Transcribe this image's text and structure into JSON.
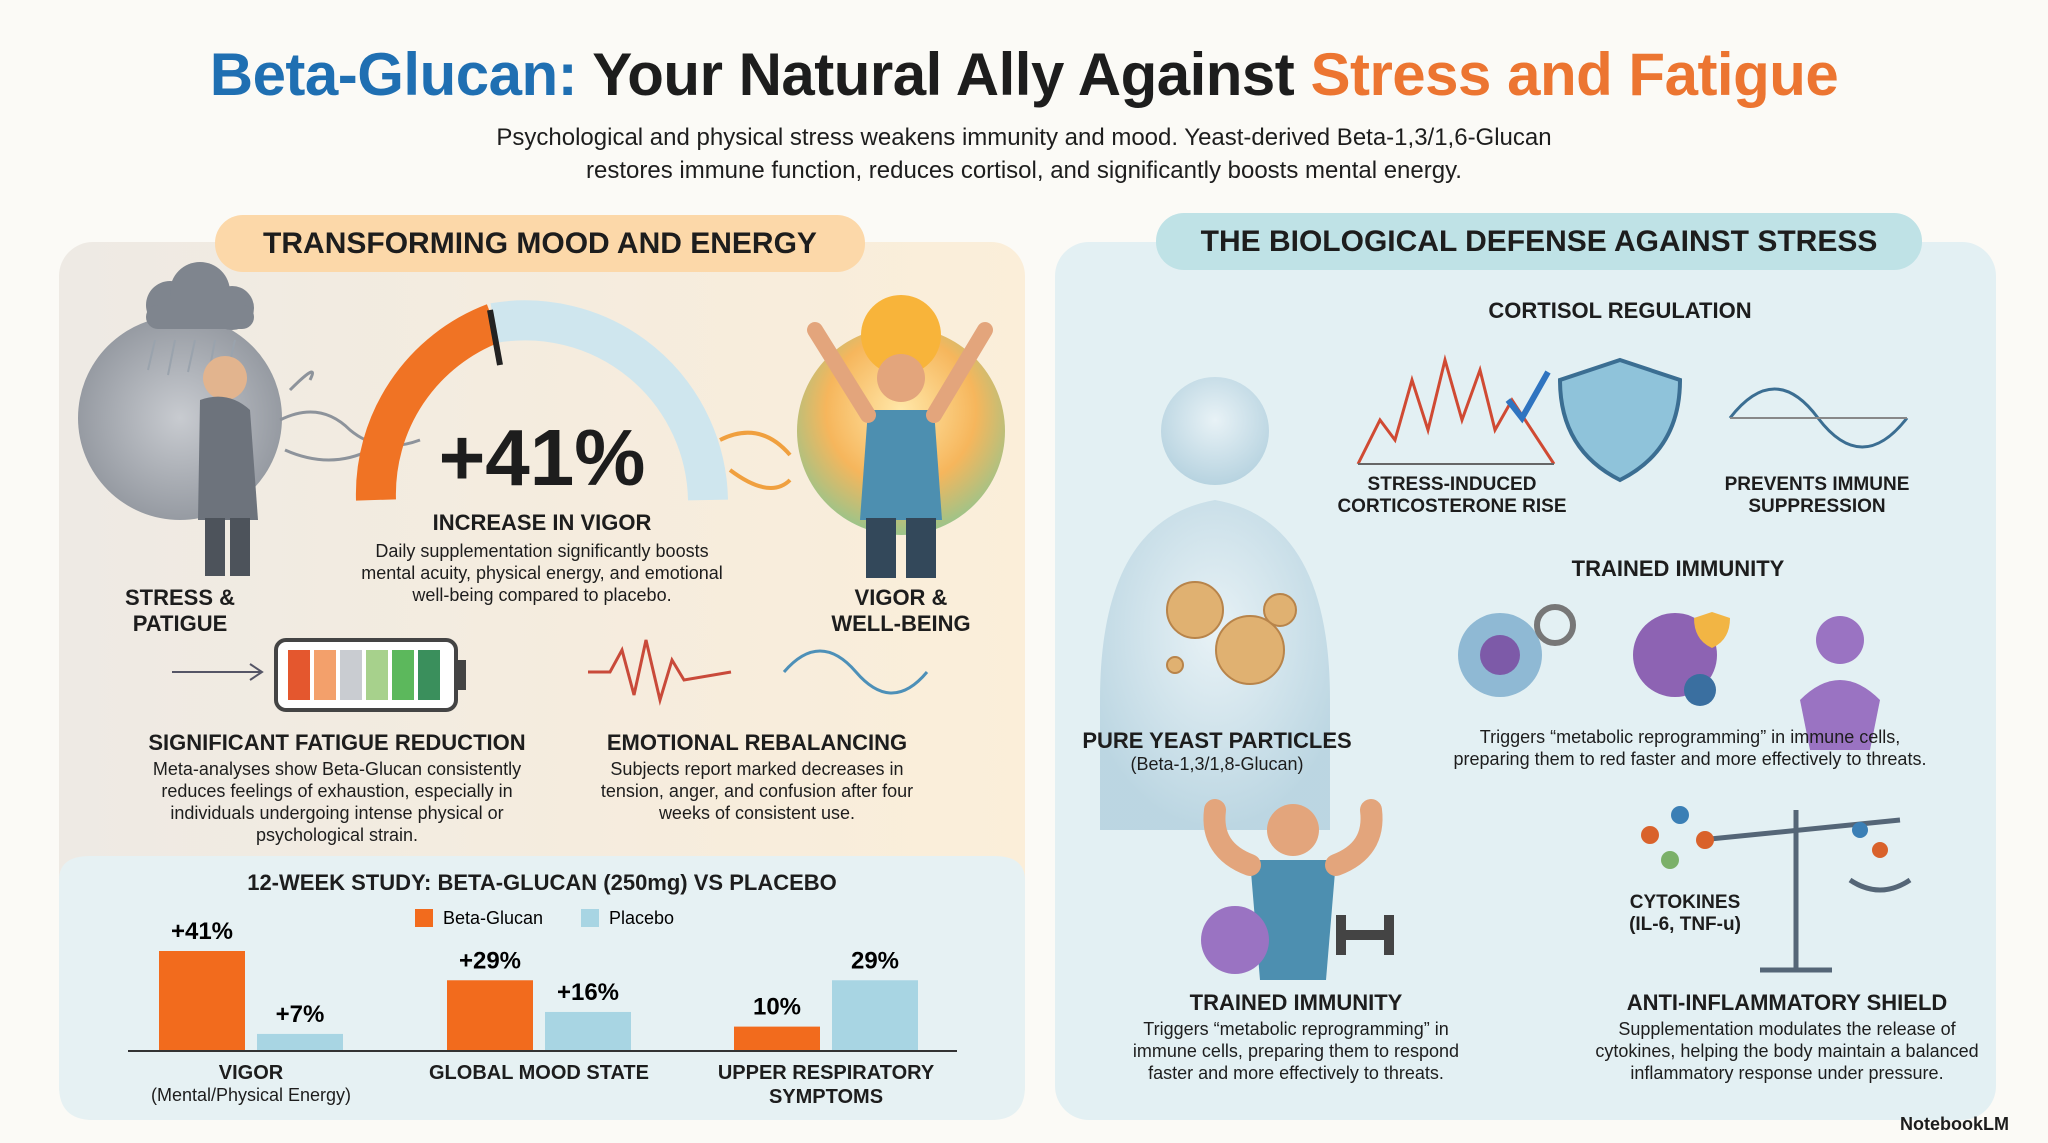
{
  "header": {
    "title_parts": [
      "Beta-Glucan:",
      "Your Natural Ally Against",
      "Stress and Fatigue"
    ],
    "subtitle": [
      "Psychological and physical stress weakens immunity and mood. Yeast-derived Beta-1,3/1,6-Glucan",
      "restores immune function, reduces cortisol, and significantly boosts mental energy."
    ]
  },
  "left_panel": {
    "heading": "TRANSFORMING MOOD AND ENERGY",
    "gauge": {
      "value_label": "+41%",
      "title": "INCREASE IN VIGOR",
      "description": "Daily supplementation significantly boosts mental acuity, physical energy, and emotional well-being compared to placebo."
    },
    "stress_label": "STRESS & PATIGUE",
    "vigor_label": "VIGOR & WELL-BEING",
    "fatigue": {
      "title": "SIGNIFICANT FATIGUE REDUCTION",
      "description": "Meta-analyses show Beta-Glucan consistently reduces feelings of exhaustion, especially in individuals undergoing intense physical or psychological strain."
    },
    "emotional": {
      "title": "EMOTIONAL REBALANCING",
      "description": "Subjects report marked decreases in tension, anger, and confusion after four weeks of consistent use."
    }
  },
  "chart_data": {
    "type": "bar",
    "title": "12-WEEK STUDY: BETA-GLUCAN (250mg) VS PLACEBO",
    "categories": [
      "VIGOR",
      "GLOBAL MOOD STATE",
      "UPPER RESPIRATORY SYMPTOMS"
    ],
    "category_note": "(Mental/Physical Energy)",
    "series": [
      {
        "name": "Beta-Glucan",
        "color": "#f26b1d",
        "values": [
          41,
          29,
          10
        ],
        "value_labels": [
          "+41%",
          "+29%",
          "10%"
        ]
      },
      {
        "name": "Placebo",
        "color": "#a8d5e3",
        "values": [
          7,
          16,
          29
        ],
        "value_labels": [
          "+7%",
          "+16%",
          "29%"
        ]
      }
    ],
    "legend": "top"
  },
  "right_panel": {
    "heading": "THE BIOLOGICAL DEFENSE AGAINST STRESS",
    "cortisol": {
      "title": "CORTISOL REGULATION",
      "rise_label": "STRESS-INDUCED CORTICOSTERONE RISE",
      "prevents_label": "PREVENTS IMMUNE SUPPRESSION"
    },
    "trained_top": {
      "title": "TRAINED IMMUNITY",
      "description": "Triggers “metabolic reprogramming” in immune cells, preparing them to red faster and more effectively to threats."
    },
    "yeast": {
      "title": "PURE YEAST PARTICLES",
      "subtitle": "(Beta-1,3/1,8-Glucan)"
    },
    "trained_bottom": {
      "title": "TRAINED IMMUNITY",
      "description": "Triggers “metabolic reprogramming” in immune cells, preparing them to respond faster and more effectively to threats."
    },
    "cytokines": "CYTOKINES (IL-6, TNF-u)",
    "shield": {
      "title": "ANTI-INFLAMMATORY SHIELD",
      "description": "Supplementation modulates the release of cytokines, helping the body maintain a balanced inflammatory response under pressure."
    }
  },
  "footer": {
    "brand": "NotebookLM"
  }
}
